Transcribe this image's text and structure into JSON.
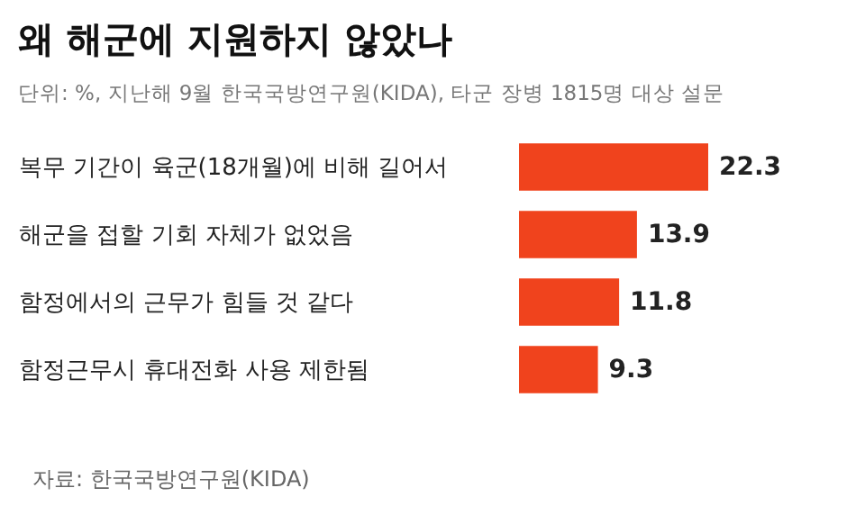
{
  "chart_data": {
    "type": "bar",
    "orientation": "horizontal",
    "title": "왜 해군에 지원하지 않았나",
    "subtitle": "단위: %, 지난해 9월 한국국방연구원(KIDA), 타군 장병 1815명 대상 설문",
    "categories": [
      "복무 기간이 육군(18개월)에 비해 길어서",
      "해군을 접할 기회 자체가 없었음",
      "함정에서의 근무가 힘들 것 같다",
      "함정근무시 휴대전화 사용 제한됨"
    ],
    "values": [
      22.3,
      13.9,
      11.8,
      9.3
    ],
    "color": "#f0431d",
    "data_labels": true,
    "annotations": [
      "자료: 한국국방연구원(KIDA)"
    ]
  }
}
